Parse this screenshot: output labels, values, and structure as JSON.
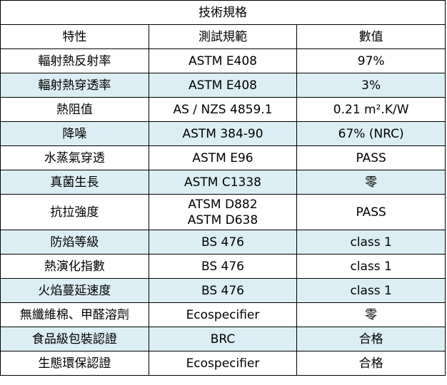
{
  "table": {
    "title": "技術規格",
    "headers": [
      "特性",
      "測試規範",
      "數值"
    ],
    "rows": [
      {
        "property": "輻射熱反射率",
        "standard": [
          "ASTM E408"
        ],
        "value": "97%"
      },
      {
        "property": "輻射熱穿透率",
        "standard": [
          "ASTM E408"
        ],
        "value": "3%"
      },
      {
        "property": "熱阻值",
        "standard": [
          "AS / NZS 4859.1"
        ],
        "value": "0.21 m².K/W"
      },
      {
        "property": "降噪",
        "standard": [
          "ASTM 384-90"
        ],
        "value": "67% (NRC)"
      },
      {
        "property": "水蒸氣穿透",
        "standard": [
          "ASTM E96"
        ],
        "value": "PASS"
      },
      {
        "property": "真菌生長",
        "standard": [
          "ASTM C1338"
        ],
        "value": "零"
      },
      {
        "property": "抗拉強度",
        "standard": [
          "ATSM D882",
          "ASTM D638"
        ],
        "value": "PASS"
      },
      {
        "property": "防焰等級",
        "standard": [
          "BS 476"
        ],
        "value": "class 1"
      },
      {
        "property": "熱演化指數",
        "standard": [
          "BS 476"
        ],
        "value": "class 1"
      },
      {
        "property": "火焰蔓延速度",
        "standard": [
          "BS 476"
        ],
        "value": "class 1"
      },
      {
        "property": "無纖維棉、甲醛溶劑",
        "standard": [
          "Ecospecifier"
        ],
        "value": "零"
      },
      {
        "property": "食品級包裝認證",
        "standard": [
          "BRC"
        ],
        "value": "合格"
      },
      {
        "property": "生態環保認證",
        "standard": [
          "Ecospecifier"
        ],
        "value": "合格"
      }
    ]
  }
}
